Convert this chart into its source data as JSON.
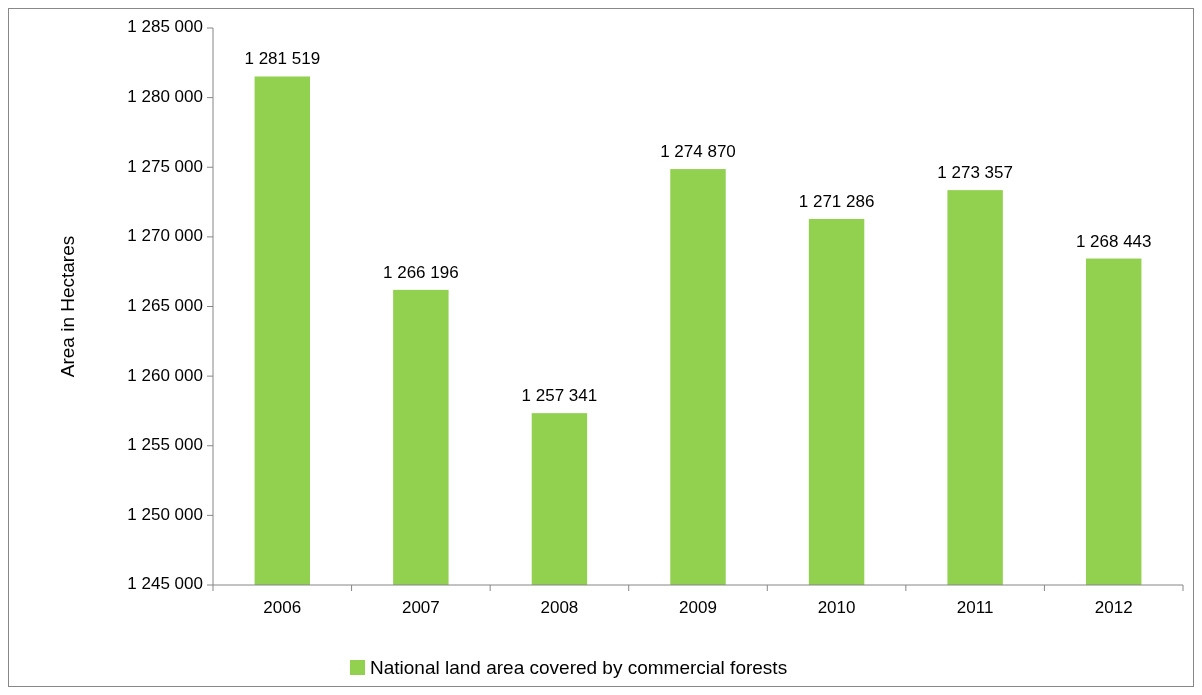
{
  "chart_data": {
    "type": "bar",
    "ylabel": "Area in Hectares",
    "categories": [
      "2006",
      "2007",
      "2008",
      "2009",
      "2010",
      "2011",
      "2012"
    ],
    "series": [
      {
        "name": "National land area covered by commercial forests",
        "color": "#92d050",
        "values": [
          1281519,
          1266196,
          1257341,
          1274870,
          1271286,
          1273357,
          1268443
        ],
        "value_labels": [
          "1 281 519",
          "1 266 196",
          "1 257 341",
          "1 274 870",
          "1 271 286",
          "1 273 357",
          "1 268 443"
        ]
      }
    ],
    "ylim": [
      1245000,
      1285000
    ],
    "yticks": [
      {
        "value": 1245000,
        "label": "1 245 000"
      },
      {
        "value": 1250000,
        "label": "1 250 000"
      },
      {
        "value": 1255000,
        "label": "1 255 000"
      },
      {
        "value": 1260000,
        "label": "1 260 000"
      },
      {
        "value": 1265000,
        "label": "1 265 000"
      },
      {
        "value": 1270000,
        "label": "1 270 000"
      },
      {
        "value": 1275000,
        "label": "1 275 000"
      },
      {
        "value": 1280000,
        "label": "1 280 000"
      },
      {
        "value": 1285000,
        "label": "1 285 000"
      }
    ],
    "grid": false,
    "legend": "bottom"
  }
}
